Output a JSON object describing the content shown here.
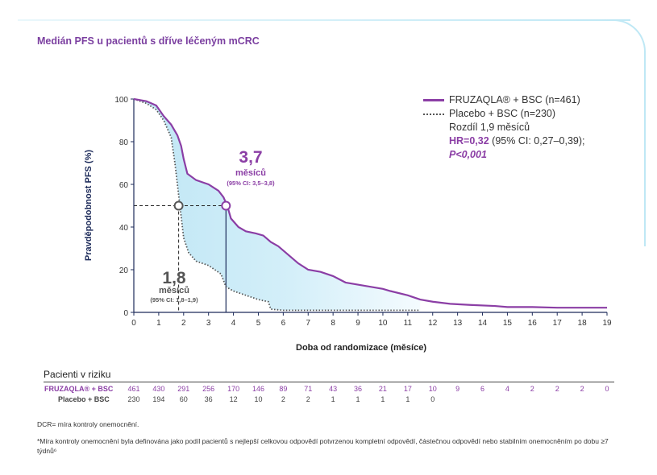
{
  "title": "Medián PFS u pacientů s dříve léčeným mCRC",
  "legend": {
    "series1": "FRUZAQLA® + BSC (n=461)",
    "series2": "Placebo + BSC (n=230)",
    "diff": "Rozdíl 1,9 měsíců",
    "hr_label": "HR=0,32",
    "hr_ci": " (95% CI: 0,27–0,39);",
    "p": "P<0,001"
  },
  "annotations": {
    "a1_value": "3,7",
    "a1_unit": "měsíců",
    "a1_ci": "(95% CI: 3,5–3,8)",
    "a2_value": "1,8",
    "a2_unit": "měsíců",
    "a2_ci": "(95% CI: 1,8–1,9)"
  },
  "risk": {
    "title": "Pacienti v riziku",
    "row1_label": "FRUZAQLA® + BSC",
    "row2_label": "Placebo + BSC",
    "row1": [
      "461",
      "430",
      "291",
      "256",
      "170",
      "146",
      "89",
      "71",
      "43",
      "36",
      "21",
      "17",
      "10",
      "9",
      "6",
      "4",
      "2",
      "2",
      "2",
      "0"
    ],
    "row2": [
      "230",
      "194",
      "60",
      "36",
      "12",
      "10",
      "2",
      "2",
      "1",
      "1",
      "1",
      "1",
      "0"
    ]
  },
  "notes": {
    "n1": "DCR= míra kontroly onemocnění.",
    "n2": "*Míra kontroly onemocnění byla definována jako podíl pacientů s nejlepší celkovou odpovědí potvrzenou kompletní odpovědí, částečnou odpovědí nebo stabilním onemocněním po dobu ≥7 týdnů⁶"
  },
  "colors": {
    "fruzaqla": "#8b3ea5",
    "placebo": "#555555",
    "fill": "#c6e9f6",
    "axis": "#1d2b5a"
  },
  "chart_data": {
    "type": "line",
    "xlabel": "Doba od randomizace (měsíce)",
    "ylabel": "Pravděpodobnost PFS (%)",
    "xlim": [
      0,
      19
    ],
    "ylim": [
      0,
      100
    ],
    "xticks": [
      "0",
      "1",
      "2",
      "3",
      "4",
      "5",
      "6",
      "7",
      "8",
      "9",
      "10",
      "11",
      "12",
      "13",
      "14",
      "15",
      "16",
      "17",
      "18",
      "19"
    ],
    "yticks": [
      "0",
      "20",
      "40",
      "60",
      "80",
      "100"
    ],
    "series": [
      {
        "name": "FRUZAQLA® + BSC (n=461)",
        "x": [
          0,
          0.5,
          0.9,
          1.2,
          1.5,
          1.75,
          1.9,
          2.0,
          2.15,
          2.5,
          3.0,
          3.4,
          3.6,
          3.75,
          3.9,
          4.2,
          4.5,
          4.9,
          5.2,
          5.5,
          5.8,
          6.2,
          6.6,
          7.0,
          7.5,
          8.0,
          8.5,
          9.0,
          9.5,
          10.0,
          10.3,
          11.0,
          11.5,
          12.0,
          12.7,
          13.5,
          14.5,
          15.0,
          16.0,
          17.0,
          18.0,
          19.0
        ],
        "y": [
          100,
          99,
          97,
          92,
          88,
          83,
          78,
          72,
          65,
          62,
          60,
          57,
          54,
          50,
          44,
          40,
          38,
          37,
          36,
          33,
          31,
          27,
          23,
          20,
          19,
          17,
          14,
          13,
          12,
          11,
          10,
          8,
          6,
          5,
          4,
          3.5,
          3,
          2.5,
          2.5,
          2.2,
          2.2,
          2.2
        ]
      },
      {
        "name": "Placebo + BSC (n=230)",
        "x": [
          0,
          0.5,
          0.9,
          1.2,
          1.5,
          1.65,
          1.8,
          1.9,
          2.0,
          2.2,
          2.5,
          3.0,
          3.5,
          3.7,
          4.0,
          4.5,
          5.0,
          5.4,
          5.5,
          6.0,
          7.0,
          8.0,
          9.0,
          10.0,
          11.0,
          11.5
        ],
        "y": [
          100,
          98,
          95,
          90,
          82,
          70,
          55,
          45,
          35,
          28,
          24,
          22,
          18,
          12,
          10,
          8,
          6,
          5,
          1.5,
          1,
          1,
          1,
          1,
          1,
          1,
          1
        ]
      }
    ],
    "medians": [
      {
        "x": 3.7,
        "y": 50
      },
      {
        "x": 1.8,
        "y": 50
      }
    ]
  }
}
